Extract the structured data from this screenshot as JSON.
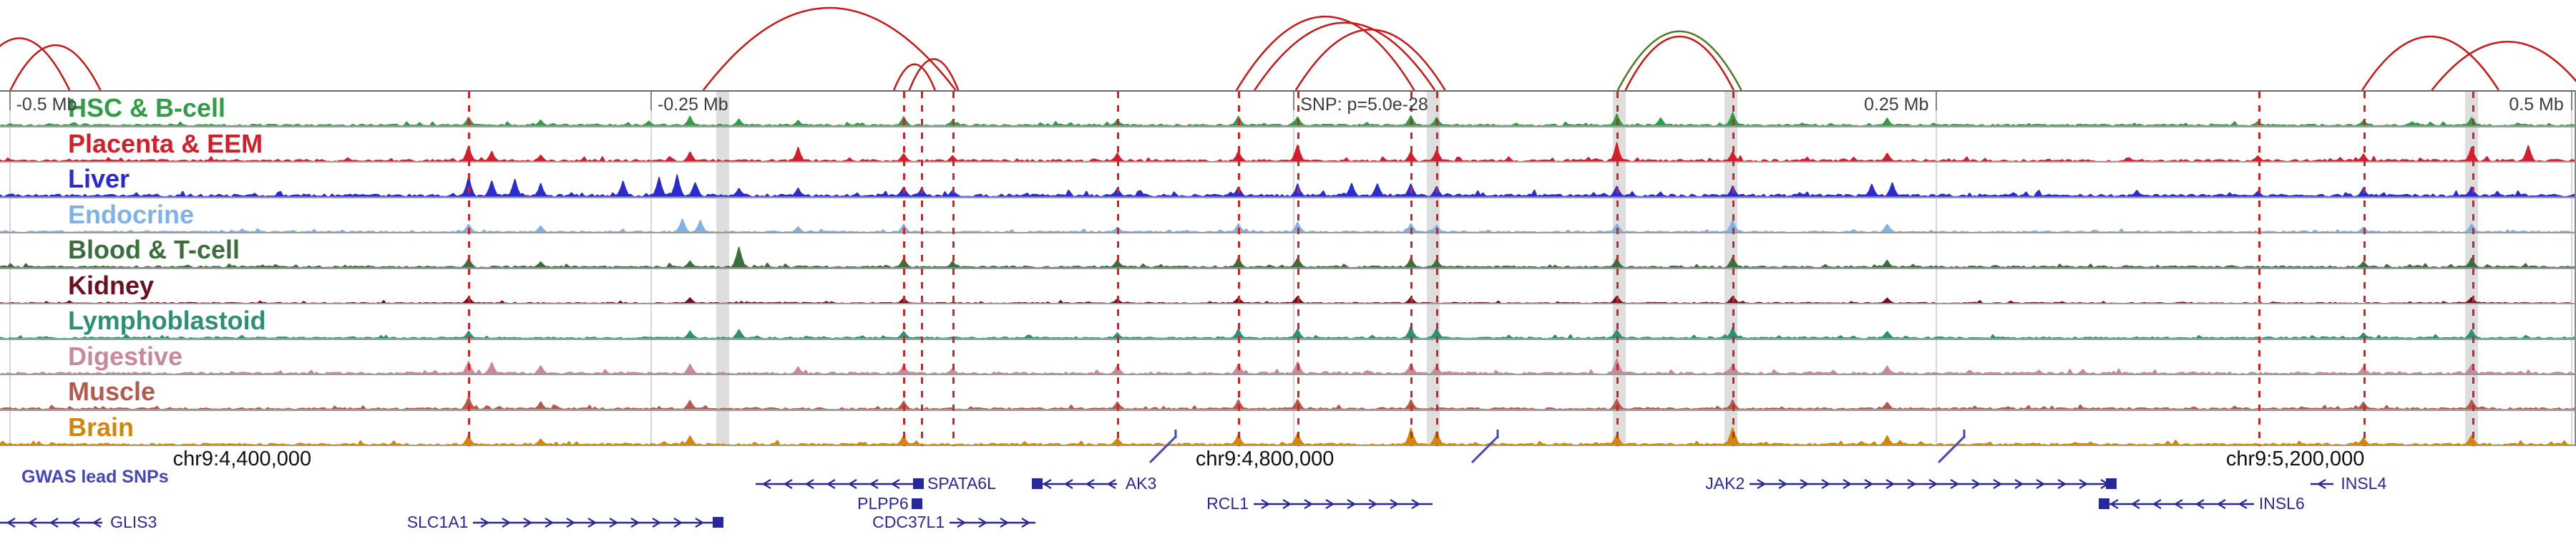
{
  "chart_data": {
    "type": "area",
    "description_title": "",
    "x_axis_ticks": [
      {
        "label": "-0.5 Mb",
        "x": 0.0035,
        "anchor": "start"
      },
      {
        "label": "-0.25 Mb",
        "x": 0.2525,
        "anchor": "start"
      },
      {
        "label": "SNP: p=5.0e-28",
        "x": 0.502,
        "anchor": "start"
      },
      {
        "label": "0.25 Mb",
        "x": 0.7515,
        "anchor": "end"
      },
      {
        "label": "0.5 Mb",
        "x": 0.998,
        "anchor": "end"
      }
    ],
    "coordinate_labels": [
      {
        "label": "chr9:4,400,000",
        "x": 0.094
      },
      {
        "label": "chr9:4,800,000",
        "x": 0.491
      },
      {
        "label": "chr9:5,200,000",
        "x": 0.891
      }
    ],
    "highlight_bands": [
      0.2806,
      0.5565,
      0.6285,
      0.672,
      0.9595
    ],
    "lead_snp_lines": [
      0.182,
      0.351,
      0.358,
      0.37,
      0.434,
      0.481,
      0.504,
      0.548,
      0.558,
      0.628,
      0.673,
      0.877,
      0.918,
      0.96
    ],
    "dashed_line_color": "#d42222",
    "arcs": [
      {
        "x1": -0.012,
        "x2": 0.027,
        "h": 0.6,
        "color": "#cc1515"
      },
      {
        "x1": 0.004,
        "x2": 0.039,
        "h": 0.52,
        "color": "#cc1515"
      },
      {
        "x1": 0.273,
        "x2": 0.371,
        "h": 0.95,
        "color": "#cc1515"
      },
      {
        "x1": 0.347,
        "x2": 0.363,
        "h": 0.3,
        "color": "#cc1515"
      },
      {
        "x1": 0.353,
        "x2": 0.372,
        "h": 0.36,
        "color": "#cc1515"
      },
      {
        "x1": 0.48,
        "x2": 0.549,
        "h": 0.85,
        "color": "#cc1515"
      },
      {
        "x1": 0.487,
        "x2": 0.557,
        "h": 0.78,
        "color": "#cc1515"
      },
      {
        "x1": 0.503,
        "x2": 0.561,
        "h": 0.7,
        "color": "#cc1515"
      },
      {
        "x1": 0.628,
        "x2": 0.676,
        "h": 0.68,
        "color": "#4e7a22"
      },
      {
        "x1": 0.631,
        "x2": 0.673,
        "h": 0.62,
        "color": "#cc1515"
      },
      {
        "x1": 0.917,
        "x2": 0.97,
        "h": 0.62,
        "color": "#cc1515"
      },
      {
        "x1": 0.944,
        "x2": 1.003,
        "h": 0.56,
        "color": "#cc1515"
      }
    ],
    "tracks": [
      {
        "name": "HSC & B-cell",
        "color": "#2f9e44",
        "noise": 0.08,
        "peaks": [
          [
            0.182,
            0.28
          ],
          [
            0.21,
            0.18
          ],
          [
            0.252,
            0.15
          ],
          [
            0.268,
            0.3
          ],
          [
            0.287,
            0.22
          ],
          [
            0.31,
            0.18
          ],
          [
            0.351,
            0.3
          ],
          [
            0.37,
            0.18
          ],
          [
            0.434,
            0.2
          ],
          [
            0.481,
            0.32
          ],
          [
            0.504,
            0.3
          ],
          [
            0.548,
            0.34
          ],
          [
            0.558,
            0.28
          ],
          [
            0.628,
            0.38
          ],
          [
            0.645,
            0.25
          ],
          [
            0.673,
            0.42
          ],
          [
            0.733,
            0.25
          ],
          [
            0.877,
            0.15
          ],
          [
            0.918,
            0.18
          ],
          [
            0.96,
            0.28
          ]
        ]
      },
      {
        "name": "Placenta & EEM",
        "color": "#d31f2b",
        "noise": 0.1,
        "peaks": [
          [
            0.182,
            0.5
          ],
          [
            0.191,
            0.32
          ],
          [
            0.21,
            0.22
          ],
          [
            0.268,
            0.32
          ],
          [
            0.31,
            0.45
          ],
          [
            0.351,
            0.28
          ],
          [
            0.37,
            0.2
          ],
          [
            0.434,
            0.28
          ],
          [
            0.481,
            0.33
          ],
          [
            0.504,
            0.55
          ],
          [
            0.548,
            0.32
          ],
          [
            0.558,
            0.4
          ],
          [
            0.628,
            0.6
          ],
          [
            0.673,
            0.33
          ],
          [
            0.733,
            0.28
          ],
          [
            0.877,
            0.2
          ],
          [
            0.918,
            0.24
          ],
          [
            0.96,
            0.45
          ],
          [
            0.982,
            0.5
          ]
        ]
      },
      {
        "name": "Liver",
        "color": "#2b2bd0",
        "noise": 0.12,
        "peaks": [
          [
            0.182,
            0.62
          ],
          [
            0.191,
            0.5
          ],
          [
            0.2,
            0.55
          ],
          [
            0.21,
            0.42
          ],
          [
            0.242,
            0.5
          ],
          [
            0.256,
            0.6
          ],
          [
            0.263,
            0.68
          ],
          [
            0.27,
            0.5
          ],
          [
            0.287,
            0.28
          ],
          [
            0.31,
            0.28
          ],
          [
            0.351,
            0.34
          ],
          [
            0.358,
            0.28
          ],
          [
            0.37,
            0.22
          ],
          [
            0.434,
            0.28
          ],
          [
            0.481,
            0.33
          ],
          [
            0.504,
            0.4
          ],
          [
            0.525,
            0.42
          ],
          [
            0.535,
            0.45
          ],
          [
            0.548,
            0.44
          ],
          [
            0.558,
            0.32
          ],
          [
            0.628,
            0.34
          ],
          [
            0.673,
            0.34
          ],
          [
            0.727,
            0.4
          ],
          [
            0.735,
            0.44
          ],
          [
            0.83,
            0.22
          ],
          [
            0.877,
            0.18
          ],
          [
            0.918,
            0.28
          ],
          [
            0.96,
            0.32
          ]
        ]
      },
      {
        "name": "Endocrine",
        "color": "#7fb2e5",
        "noise": 0.07,
        "peaks": [
          [
            0.182,
            0.28
          ],
          [
            0.21,
            0.22
          ],
          [
            0.265,
            0.45
          ],
          [
            0.272,
            0.38
          ],
          [
            0.31,
            0.2
          ],
          [
            0.351,
            0.28
          ],
          [
            0.434,
            0.18
          ],
          [
            0.481,
            0.28
          ],
          [
            0.504,
            0.33
          ],
          [
            0.548,
            0.3
          ],
          [
            0.558,
            0.24
          ],
          [
            0.628,
            0.3
          ],
          [
            0.673,
            0.42
          ],
          [
            0.733,
            0.28
          ],
          [
            0.918,
            0.18
          ],
          [
            0.96,
            0.28
          ]
        ]
      },
      {
        "name": "Blood & T-cell",
        "color": "#3c6e3c",
        "noise": 0.08,
        "peaks": [
          [
            0.182,
            0.3
          ],
          [
            0.21,
            0.2
          ],
          [
            0.268,
            0.22
          ],
          [
            0.287,
            0.7
          ],
          [
            0.351,
            0.3
          ],
          [
            0.37,
            0.2
          ],
          [
            0.434,
            0.24
          ],
          [
            0.481,
            0.32
          ],
          [
            0.504,
            0.34
          ],
          [
            0.548,
            0.3
          ],
          [
            0.558,
            0.26
          ],
          [
            0.628,
            0.3
          ],
          [
            0.673,
            0.34
          ],
          [
            0.733,
            0.24
          ],
          [
            0.918,
            0.2
          ],
          [
            0.96,
            0.3
          ]
        ]
      },
      {
        "name": "Kidney",
        "color": "#6b1020",
        "noise": 0.05,
        "peaks": [
          [
            0.182,
            0.2
          ],
          [
            0.268,
            0.18
          ],
          [
            0.351,
            0.18
          ],
          [
            0.434,
            0.15
          ],
          [
            0.481,
            0.2
          ],
          [
            0.504,
            0.24
          ],
          [
            0.548,
            0.2
          ],
          [
            0.628,
            0.24
          ],
          [
            0.673,
            0.24
          ],
          [
            0.733,
            0.18
          ],
          [
            0.96,
            0.2
          ]
        ]
      },
      {
        "name": "Lymphoblastoid",
        "color": "#2f8f74",
        "noise": 0.07,
        "peaks": [
          [
            0.182,
            0.24
          ],
          [
            0.268,
            0.24
          ],
          [
            0.287,
            0.3
          ],
          [
            0.351,
            0.24
          ],
          [
            0.434,
            0.18
          ],
          [
            0.481,
            0.3
          ],
          [
            0.504,
            0.3
          ],
          [
            0.548,
            0.4
          ],
          [
            0.558,
            0.34
          ],
          [
            0.628,
            0.3
          ],
          [
            0.673,
            0.34
          ],
          [
            0.733,
            0.24
          ],
          [
            0.918,
            0.18
          ],
          [
            0.96,
            0.3
          ]
        ]
      },
      {
        "name": "Digestive",
        "color": "#c9889c",
        "noise": 0.1,
        "peaks": [
          [
            0.182,
            0.45
          ],
          [
            0.191,
            0.38
          ],
          [
            0.21,
            0.3
          ],
          [
            0.268,
            0.34
          ],
          [
            0.31,
            0.24
          ],
          [
            0.351,
            0.3
          ],
          [
            0.37,
            0.2
          ],
          [
            0.434,
            0.28
          ],
          [
            0.481,
            0.34
          ],
          [
            0.504,
            0.4
          ],
          [
            0.548,
            0.34
          ],
          [
            0.558,
            0.28
          ],
          [
            0.628,
            0.5
          ],
          [
            0.673,
            0.34
          ],
          [
            0.733,
            0.28
          ],
          [
            0.918,
            0.24
          ],
          [
            0.96,
            0.34
          ]
        ]
      },
      {
        "name": "Muscle",
        "color": "#b35a4e",
        "noise": 0.08,
        "peaks": [
          [
            0.182,
            0.4
          ],
          [
            0.21,
            0.24
          ],
          [
            0.268,
            0.3
          ],
          [
            0.351,
            0.28
          ],
          [
            0.434,
            0.24
          ],
          [
            0.481,
            0.3
          ],
          [
            0.504,
            0.34
          ],
          [
            0.548,
            0.3
          ],
          [
            0.628,
            0.34
          ],
          [
            0.673,
            0.3
          ],
          [
            0.733,
            0.24
          ],
          [
            0.918,
            0.24
          ],
          [
            0.96,
            0.3
          ]
        ]
      },
      {
        "name": "Brain",
        "color": "#d4860b",
        "noise": 0.09,
        "peaks": [
          [
            0.182,
            0.3
          ],
          [
            0.21,
            0.2
          ],
          [
            0.268,
            0.3
          ],
          [
            0.351,
            0.3
          ],
          [
            0.434,
            0.24
          ],
          [
            0.481,
            0.34
          ],
          [
            0.504,
            0.4
          ],
          [
            0.548,
            0.55
          ],
          [
            0.558,
            0.44
          ],
          [
            0.628,
            0.34
          ],
          [
            0.673,
            0.6
          ],
          [
            0.733,
            0.3
          ],
          [
            0.918,
            0.24
          ],
          [
            0.96,
            0.34
          ]
        ]
      }
    ],
    "gwas": {
      "label": "GWAS lead SNPs",
      "color": "#4545bd",
      "markers": [
        0.457,
        0.582,
        0.763
      ]
    },
    "gene_color": "#28289b",
    "genes": [
      {
        "name": "GLIS3",
        "row": 2,
        "strand": "-",
        "line": [
          0.0,
          0.0397
        ],
        "label_x": 0.0428,
        "label_anchor": "start",
        "exons": []
      },
      {
        "name": "SLC1A1",
        "row": 2,
        "strand": "+",
        "line": [
          0.1837,
          0.2787
        ],
        "label_x": 0.1818,
        "label_anchor": "end",
        "exons": [
          0.2787
        ]
      },
      {
        "name": "SPATA6L",
        "row": 0,
        "strand": "-",
        "line": [
          0.2934,
          0.3572
        ],
        "label_x": 0.36,
        "label_anchor": "start",
        "exons": [
          0.3565
        ]
      },
      {
        "name": "PLPP6",
        "row": 1,
        "strand": "-",
        "line": null,
        "label_x": 0.3527,
        "label_anchor": "end",
        "exons": [
          0.3558
        ]
      },
      {
        "name": "CDC37L1",
        "row": 2,
        "strand": "+",
        "line": [
          0.3686,
          0.4018
        ],
        "label_x": 0.3667,
        "label_anchor": "end",
        "exons": []
      },
      {
        "name": "AK3",
        "row": 0,
        "strand": "-",
        "line": [
          0.4022,
          0.4337
        ],
        "label_x": 0.4369,
        "label_anchor": "start",
        "exons": [
          0.4026
        ]
      },
      {
        "name": "RCL1",
        "row": 1,
        "strand": "+",
        "line": [
          0.4866,
          0.5561
        ],
        "label_x": 0.4847,
        "label_anchor": "end",
        "exons": []
      },
      {
        "name": "JAK2",
        "row": 0,
        "strand": "+",
        "line": [
          0.6792,
          0.8195
        ],
        "label_x": 0.6773,
        "label_anchor": "end",
        "exons": [
          0.8195
        ]
      },
      {
        "name": "INSL6",
        "row": 1,
        "strand": "-",
        "line": [
          0.8163,
          0.875
        ],
        "label_x": 0.8769,
        "label_anchor": "start",
        "exons": [
          0.8166
        ]
      },
      {
        "name": "INSL4",
        "row": 0,
        "strand": "-",
        "line": [
          0.897,
          0.906
        ],
        "label_x": 0.9087,
        "label_anchor": "start",
        "exons": []
      }
    ]
  }
}
